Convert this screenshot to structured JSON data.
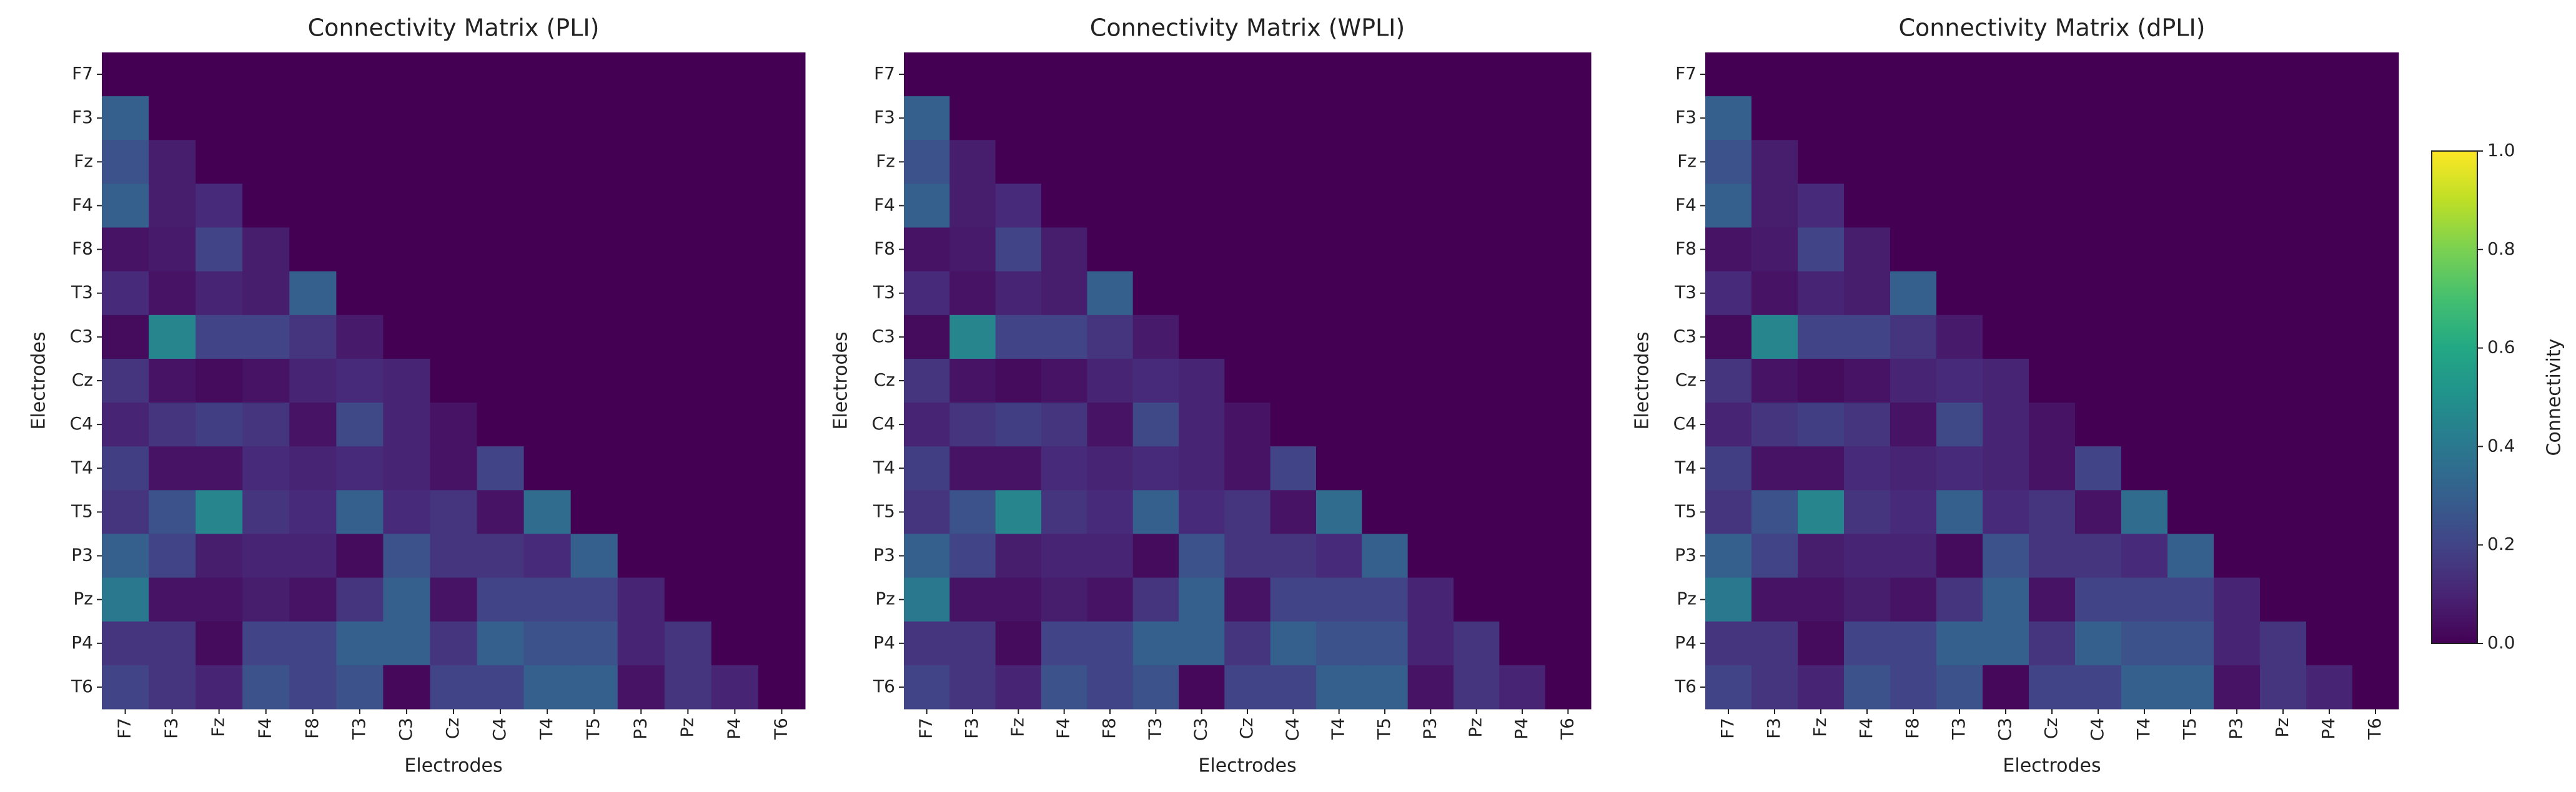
{
  "chart_data": [
    {
      "type": "heatmap",
      "title": "Connectivity Matrix (PLI)",
      "x_label": "Electrodes",
      "y_label": "Electrodes",
      "colormap": "viridis",
      "zlim": [
        0,
        1
      ],
      "x": [
        "F7",
        "F3",
        "Fz",
        "F4",
        "F8",
        "T3",
        "C3",
        "Cz",
        "C4",
        "T4",
        "T5",
        "P3",
        "Pz",
        "P4",
        "T6"
      ],
      "y": [
        "F7",
        "F3",
        "Fz",
        "F4",
        "F8",
        "T3",
        "C3",
        "Cz",
        "C4",
        "T4",
        "T5",
        "P3",
        "Pz",
        "P4",
        "T6"
      ],
      "values": [
        [
          0,
          0,
          0,
          0,
          0,
          0,
          0,
          0,
          0,
          0,
          0,
          0,
          0,
          0,
          0
        ],
        [
          0.3,
          0,
          0,
          0,
          0,
          0,
          0,
          0,
          0,
          0,
          0,
          0,
          0,
          0,
          0
        ],
        [
          0.25,
          0.08,
          0,
          0,
          0,
          0,
          0,
          0,
          0,
          0,
          0,
          0,
          0,
          0,
          0
        ],
        [
          0.3,
          0.08,
          0.12,
          0,
          0,
          0,
          0,
          0,
          0,
          0,
          0,
          0,
          0,
          0,
          0
        ],
        [
          0.05,
          0.07,
          0.2,
          0.08,
          0,
          0,
          0,
          0,
          0,
          0,
          0,
          0,
          0,
          0,
          0
        ],
        [
          0.12,
          0.05,
          0.1,
          0.08,
          0.3,
          0,
          0,
          0,
          0,
          0,
          0,
          0,
          0,
          0,
          0
        ],
        [
          0.03,
          0.45,
          0.2,
          0.2,
          0.15,
          0.07,
          0,
          0,
          0,
          0,
          0,
          0,
          0,
          0,
          0
        ],
        [
          0.15,
          0.05,
          0.03,
          0.05,
          0.1,
          0.12,
          0.1,
          0,
          0,
          0,
          0,
          0,
          0,
          0,
          0
        ],
        [
          0.1,
          0.15,
          0.18,
          0.15,
          0.05,
          0.22,
          0.1,
          0.05,
          0,
          0,
          0,
          0,
          0,
          0,
          0
        ],
        [
          0.18,
          0.05,
          0.05,
          0.12,
          0.1,
          0.12,
          0.1,
          0.05,
          0.2,
          0,
          0,
          0,
          0,
          0,
          0
        ],
        [
          0.15,
          0.25,
          0.45,
          0.15,
          0.12,
          0.3,
          0.12,
          0.15,
          0.05,
          0.35,
          0,
          0,
          0,
          0,
          0
        ],
        [
          0.3,
          0.2,
          0.08,
          0.1,
          0.1,
          0.03,
          0.25,
          0.15,
          0.15,
          0.12,
          0.3,
          0,
          0,
          0,
          0
        ],
        [
          0.4,
          0.05,
          0.05,
          0.08,
          0.05,
          0.15,
          0.3,
          0.05,
          0.2,
          0.2,
          0.2,
          0.1,
          0,
          0,
          0
        ],
        [
          0.15,
          0.15,
          0.03,
          0.2,
          0.2,
          0.3,
          0.3,
          0.15,
          0.3,
          0.25,
          0.25,
          0.1,
          0.15,
          0,
          0
        ],
        [
          0.2,
          0.15,
          0.1,
          0.25,
          0.2,
          0.25,
          0.02,
          0.2,
          0.2,
          0.3,
          0.3,
          0.05,
          0.15,
          0.1,
          0
        ]
      ]
    },
    {
      "type": "heatmap",
      "title": "Connectivity Matrix (WPLI)",
      "x_label": "Electrodes",
      "y_label": "Electrodes",
      "colormap": "viridis",
      "zlim": [
        0,
        1
      ],
      "x": [
        "F7",
        "F3",
        "Fz",
        "F4",
        "F8",
        "T3",
        "C3",
        "Cz",
        "C4",
        "T4",
        "T5",
        "P3",
        "Pz",
        "P4",
        "T6"
      ],
      "y": [
        "F7",
        "F3",
        "Fz",
        "F4",
        "F8",
        "T3",
        "C3",
        "Cz",
        "C4",
        "T4",
        "T5",
        "P3",
        "Pz",
        "P4",
        "T6"
      ],
      "values": [
        [
          0,
          0,
          0,
          0,
          0,
          0,
          0,
          0,
          0,
          0,
          0,
          0,
          0,
          0,
          0
        ],
        [
          0.3,
          0,
          0,
          0,
          0,
          0,
          0,
          0,
          0,
          0,
          0,
          0,
          0,
          0,
          0
        ],
        [
          0.25,
          0.08,
          0,
          0,
          0,
          0,
          0,
          0,
          0,
          0,
          0,
          0,
          0,
          0,
          0
        ],
        [
          0.3,
          0.08,
          0.12,
          0,
          0,
          0,
          0,
          0,
          0,
          0,
          0,
          0,
          0,
          0,
          0
        ],
        [
          0.05,
          0.07,
          0.2,
          0.08,
          0,
          0,
          0,
          0,
          0,
          0,
          0,
          0,
          0,
          0,
          0
        ],
        [
          0.12,
          0.05,
          0.1,
          0.08,
          0.3,
          0,
          0,
          0,
          0,
          0,
          0,
          0,
          0,
          0,
          0
        ],
        [
          0.03,
          0.45,
          0.2,
          0.2,
          0.15,
          0.07,
          0,
          0,
          0,
          0,
          0,
          0,
          0,
          0,
          0
        ],
        [
          0.15,
          0.05,
          0.03,
          0.05,
          0.1,
          0.12,
          0.1,
          0,
          0,
          0,
          0,
          0,
          0,
          0,
          0
        ],
        [
          0.1,
          0.15,
          0.18,
          0.15,
          0.05,
          0.22,
          0.1,
          0.05,
          0,
          0,
          0,
          0,
          0,
          0,
          0
        ],
        [
          0.18,
          0.05,
          0.05,
          0.12,
          0.1,
          0.12,
          0.1,
          0.05,
          0.2,
          0,
          0,
          0,
          0,
          0,
          0
        ],
        [
          0.15,
          0.25,
          0.45,
          0.15,
          0.12,
          0.3,
          0.12,
          0.15,
          0.05,
          0.35,
          0,
          0,
          0,
          0,
          0
        ],
        [
          0.3,
          0.2,
          0.08,
          0.1,
          0.1,
          0.03,
          0.25,
          0.15,
          0.15,
          0.12,
          0.3,
          0,
          0,
          0,
          0
        ],
        [
          0.4,
          0.05,
          0.05,
          0.08,
          0.05,
          0.15,
          0.3,
          0.05,
          0.2,
          0.2,
          0.2,
          0.1,
          0,
          0,
          0
        ],
        [
          0.15,
          0.15,
          0.03,
          0.2,
          0.2,
          0.3,
          0.3,
          0.15,
          0.3,
          0.25,
          0.25,
          0.1,
          0.15,
          0,
          0
        ],
        [
          0.2,
          0.15,
          0.1,
          0.25,
          0.2,
          0.25,
          0.02,
          0.2,
          0.2,
          0.3,
          0.3,
          0.05,
          0.15,
          0.1,
          0
        ]
      ]
    },
    {
      "type": "heatmap",
      "title": "Connectivity Matrix (dPLI)",
      "x_label": "Electrodes",
      "y_label": "Electrodes",
      "colormap": "viridis",
      "zlim": [
        0,
        1
      ],
      "x": [
        "F7",
        "F3",
        "Fz",
        "F4",
        "F8",
        "T3",
        "C3",
        "Cz",
        "C4",
        "T4",
        "T5",
        "P3",
        "Pz",
        "P4",
        "T6"
      ],
      "y": [
        "F7",
        "F3",
        "Fz",
        "F4",
        "F8",
        "T3",
        "C3",
        "Cz",
        "C4",
        "T4",
        "T5",
        "P3",
        "Pz",
        "P4",
        "T6"
      ],
      "values": [
        [
          0,
          0,
          0,
          0,
          0,
          0,
          0,
          0,
          0,
          0,
          0,
          0,
          0,
          0,
          0
        ],
        [
          0.3,
          0,
          0,
          0,
          0,
          0,
          0,
          0,
          0,
          0,
          0,
          0,
          0,
          0,
          0
        ],
        [
          0.25,
          0.08,
          0,
          0,
          0,
          0,
          0,
          0,
          0,
          0,
          0,
          0,
          0,
          0,
          0
        ],
        [
          0.3,
          0.08,
          0.12,
          0,
          0,
          0,
          0,
          0,
          0,
          0,
          0,
          0,
          0,
          0,
          0
        ],
        [
          0.05,
          0.07,
          0.2,
          0.08,
          0,
          0,
          0,
          0,
          0,
          0,
          0,
          0,
          0,
          0,
          0
        ],
        [
          0.12,
          0.05,
          0.1,
          0.08,
          0.3,
          0,
          0,
          0,
          0,
          0,
          0,
          0,
          0,
          0,
          0
        ],
        [
          0.03,
          0.45,
          0.2,
          0.2,
          0.15,
          0.07,
          0,
          0,
          0,
          0,
          0,
          0,
          0,
          0,
          0
        ],
        [
          0.15,
          0.05,
          0.03,
          0.05,
          0.1,
          0.12,
          0.1,
          0,
          0,
          0,
          0,
          0,
          0,
          0,
          0
        ],
        [
          0.1,
          0.15,
          0.18,
          0.15,
          0.05,
          0.22,
          0.1,
          0.05,
          0,
          0,
          0,
          0,
          0,
          0,
          0
        ],
        [
          0.18,
          0.05,
          0.05,
          0.12,
          0.1,
          0.12,
          0.1,
          0.05,
          0.2,
          0,
          0,
          0,
          0,
          0,
          0
        ],
        [
          0.15,
          0.25,
          0.45,
          0.15,
          0.12,
          0.3,
          0.12,
          0.15,
          0.05,
          0.35,
          0,
          0,
          0,
          0,
          0
        ],
        [
          0.3,
          0.2,
          0.08,
          0.1,
          0.1,
          0.03,
          0.25,
          0.15,
          0.15,
          0.12,
          0.3,
          0,
          0,
          0,
          0
        ],
        [
          0.4,
          0.05,
          0.05,
          0.08,
          0.05,
          0.15,
          0.3,
          0.05,
          0.2,
          0.2,
          0.2,
          0.1,
          0,
          0,
          0
        ],
        [
          0.15,
          0.15,
          0.03,
          0.2,
          0.2,
          0.3,
          0.3,
          0.15,
          0.3,
          0.25,
          0.25,
          0.1,
          0.15,
          0,
          0
        ],
        [
          0.2,
          0.15,
          0.1,
          0.25,
          0.2,
          0.25,
          0.02,
          0.2,
          0.2,
          0.3,
          0.3,
          0.05,
          0.15,
          0.1,
          0
        ]
      ],
      "colorbar": {
        "label": "Connectivity",
        "ticks": [
          {
            "value": 0,
            "label": "0.0"
          },
          {
            "value": 0.2,
            "label": "0.2"
          },
          {
            "value": 0.4,
            "label": "0.4"
          },
          {
            "value": 0.6,
            "label": "0.6"
          },
          {
            "value": 0.8,
            "label": "0.8"
          },
          {
            "value": 1,
            "label": "1.0"
          }
        ]
      }
    }
  ]
}
